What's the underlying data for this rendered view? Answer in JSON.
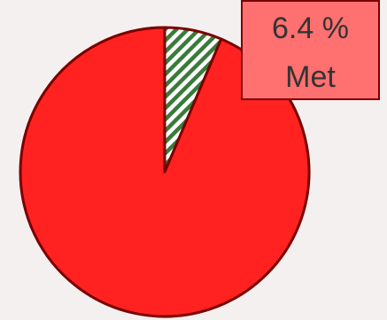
{
  "chart_data": {
    "type": "pie",
    "slices": [
      {
        "label": "Met",
        "value": 6.4,
        "pattern": "diagonal-stripes",
        "fill": "#ffffff",
        "stripe": "#3a7a3a"
      },
      {
        "label": "",
        "value": 93.6,
        "fill": "#ff2220"
      }
    ],
    "data_label": {
      "value_text": "6.4 %",
      "category_text": "Met",
      "box_fill": "#ff7070",
      "text_color": "#333333"
    },
    "outline_color": "#7a0000",
    "start_angle_deg": 0,
    "direction": "clockwise"
  }
}
